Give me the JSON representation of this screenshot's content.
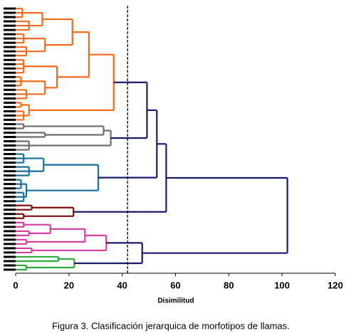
{
  "chart_data": {
    "type": "dendrogram",
    "x_label": "Disimilitud",
    "caption": "Figura 3. Clasificación jerarquica de morfotipos de llamas.",
    "xlim": [
      0,
      120
    ],
    "xticks": [
      0,
      20,
      40,
      60,
      80,
      100,
      120
    ],
    "cut": 42,
    "link_color": "#1a1a6e",
    "tree": {
      "height": 102,
      "children": [
        {
          "height": 56.5,
          "children": [
            {
              "height": 53,
              "children": [
                {
                  "height": 49.3,
                  "children": [
                    {
                      "height": 36.8,
                      "color": "#f26b1d",
                      "children": [
                        {
                          "height": 27.5,
                          "children": [
                            {
                              "height": 21.3,
                              "children": [
                                {
                                  "height": 10,
                                  "children": [
                                    {
                                      "height": 2.5,
                                      "leaves": 3
                                    },
                                    {
                                      "height": 5,
                                      "leaves": 3
                                    }
                                  ]
                                },
                                {
                                  "height": 11,
                                  "children": [
                                    {
                                      "height": 3,
                                      "leaves": 3
                                    },
                                    {
                                      "height": 4,
                                      "leaves": 3
                                    }
                                  ]
                                }
                              ]
                            },
                            {
                              "height": 15.5,
                              "children": [
                                {
                                  "height": 3,
                                  "leaves": 4
                                },
                                {
                                  "height": 11,
                                  "children": [
                                    {
                                      "height": 2,
                                      "leaves": 3
                                    },
                                    {
                                      "height": 4,
                                      "leaves": 3
                                    }
                                  ]
                                }
                              ]
                            }
                          ]
                        },
                        {
                          "height": 5,
                          "children": [
                            {
                              "height": 2,
                              "leaves": 2
                            },
                            {
                              "height": 3,
                              "leaves": 3
                            }
                          ]
                        }
                      ]
                    },
                    {
                      "height": 35.7,
                      "color": "#6d6d6d",
                      "children": [
                        {
                          "height": 33,
                          "children": [
                            {
                              "height": 3,
                              "leaves": 2
                            },
                            {
                              "height": 11,
                              "leaves": 2
                            }
                          ]
                        },
                        {
                          "height": 5,
                          "leaves": 3
                        }
                      ]
                    }
                  ]
                },
                {
                  "height": 31,
                  "color": "#16709a",
                  "children": [
                    {
                      "height": 10.5,
                      "children": [
                        {
                          "height": 3,
                          "leaves": 3
                        },
                        {
                          "height": 5,
                          "leaves": 3
                        }
                      ]
                    },
                    {
                      "height": 4,
                      "children": [
                        {
                          "height": 2,
                          "leaves": 3
                        },
                        {
                          "height": 3,
                          "leaves": 3
                        }
                      ]
                    }
                  ]
                }
              ]
            },
            {
              "height": 21.7,
              "color": "#7b1111",
              "children": [
                {
                  "height": 6,
                  "leaves": 2
                },
                {
                  "height": 3,
                  "leaves": 2
                }
              ]
            }
          ]
        },
        {
          "height": 47.5,
          "children": [
            {
              "height": 34,
              "color": "#d43fa0",
              "children": [
                {
                  "height": 26,
                  "children": [
                    {
                      "height": 13,
                      "children": [
                        {
                          "height": 3,
                          "leaves": 2
                        },
                        {
                          "height": 5,
                          "leaves": 2
                        }
                      ]
                    },
                    {
                      "height": 4,
                      "leaves": 2
                    }
                  ]
                },
                {
                  "height": 6,
                  "leaves": 2
                }
              ]
            },
            {
              "height": 22,
              "color": "#2eaa3a",
              "children": [
                {
                  "height": 16,
                  "leaves": 2
                },
                {
                  "height": 4,
                  "leaves": 2
                }
              ]
            }
          ]
        }
      ]
    }
  }
}
